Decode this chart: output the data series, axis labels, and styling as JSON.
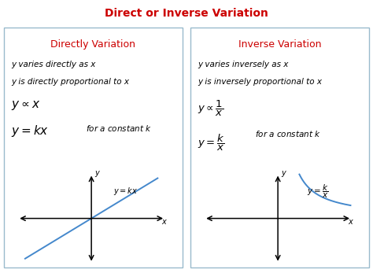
{
  "title": "Direct or Inverse Variation",
  "title_color": "#cc0000",
  "title_fontsize": 10,
  "left_title": "Directly Variation",
  "right_title": "Inverse Variation",
  "subtitle_color": "#cc0000",
  "subtitle_fontsize": 9,
  "background": "#ffffff",
  "box_edge_color": "#99bbcc",
  "text_color": "#000000",
  "curve_color": "#4488cc",
  "left_lines": [
    "y varies directly as x",
    "y is directly proportional to x"
  ],
  "right_lines": [
    "y varies inversely as x",
    "y is inversely proportional to x"
  ],
  "math_fontsize": 11,
  "small_fontsize": 7.5,
  "graph_label_fontsize": 7
}
